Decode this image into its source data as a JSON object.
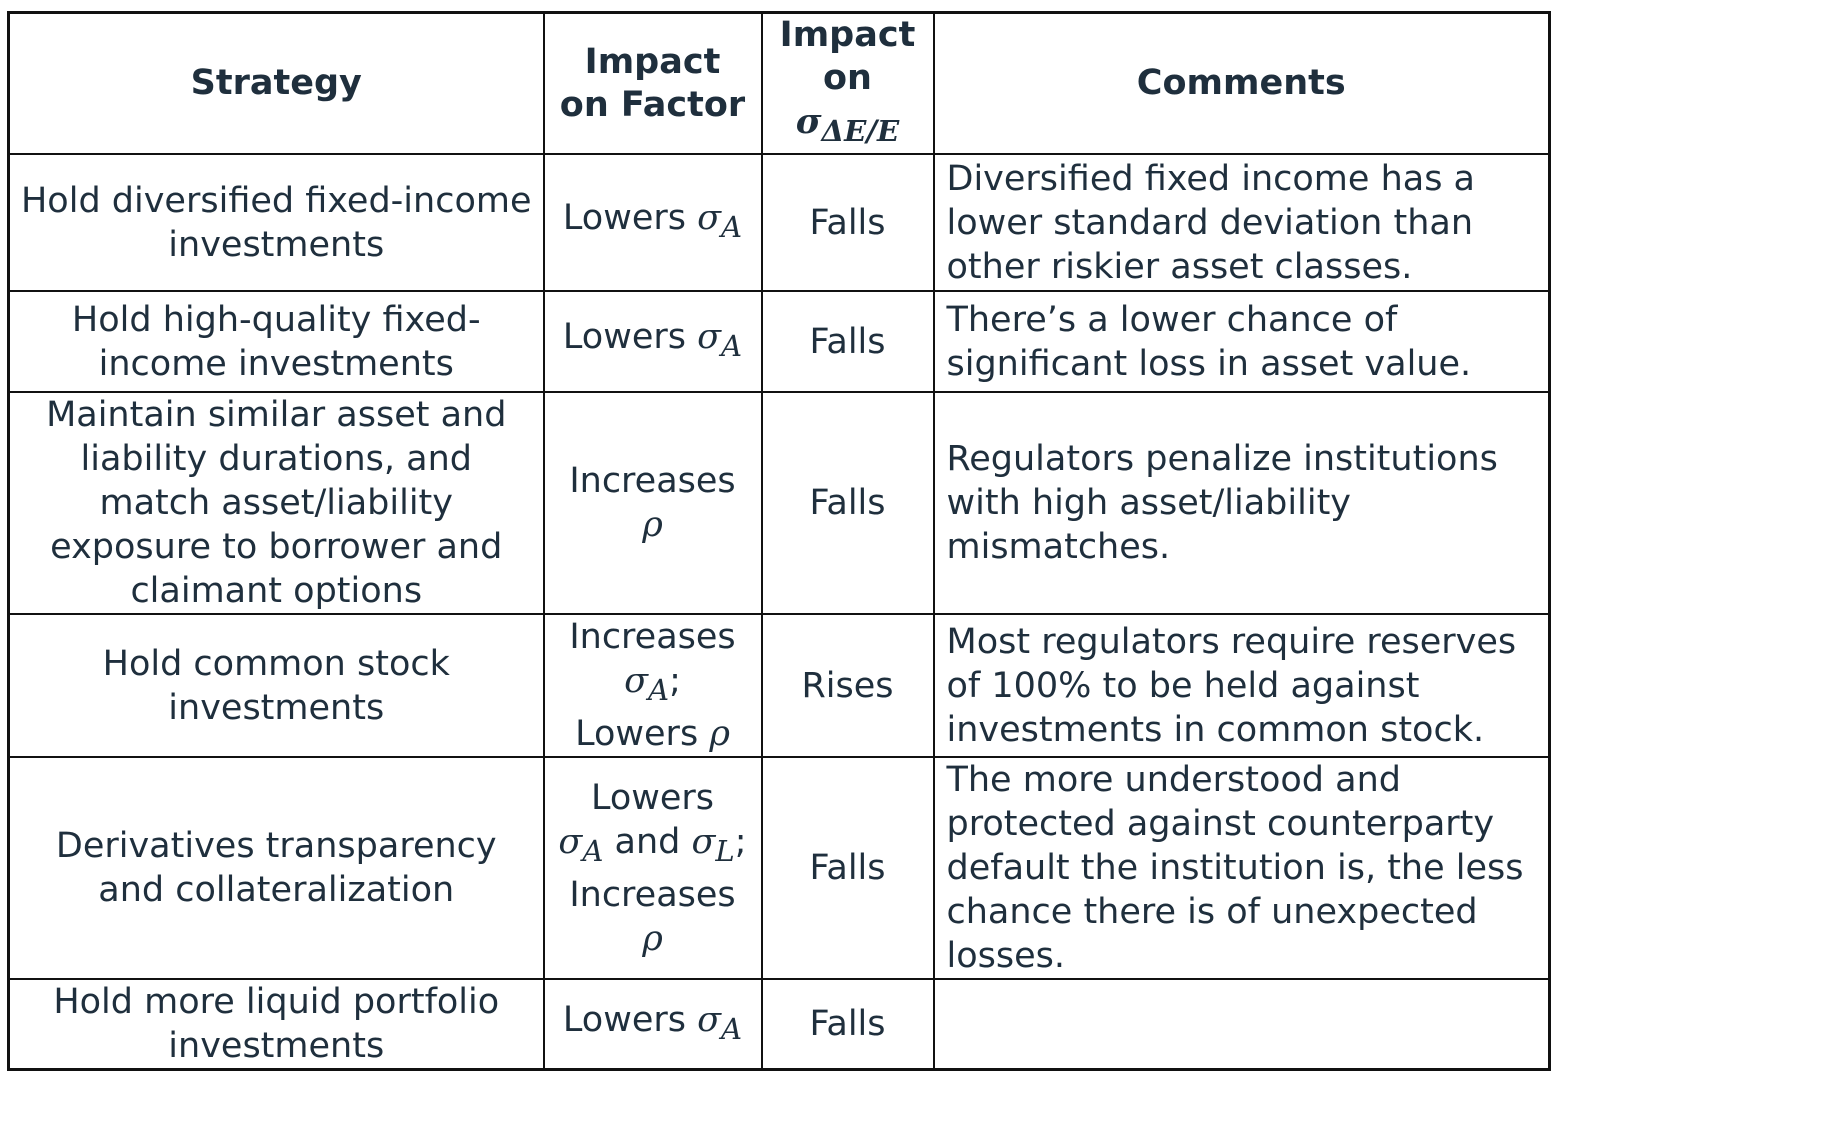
{
  "table": {
    "headers": {
      "strategy": "Strategy",
      "impact_factor": "Impact on Factor",
      "impact_sigma_prefix": "Impact on",
      "impact_sigma_symbol": "σ",
      "impact_sigma_sub": "ΔE/E",
      "comments": "Comments"
    },
    "rows": [
      {
        "strategy": "Hold diversified fixed-income investments",
        "impact_factor": {
          "lead": "Lowers",
          "symbol": "σ",
          "sub": "A"
        },
        "impact_sigma": "Falls",
        "comments": "Diversified fixed income has a lower standard deviation than other riskier asset classes."
      },
      {
        "strategy": "Hold high-quality fixed-income investments",
        "impact_factor": {
          "lead": "Lowers",
          "symbol": "σ",
          "sub": "A"
        },
        "impact_sigma": "Falls",
        "comments": "There’s a lower chance of significant loss in asset value."
      },
      {
        "strategy": "Maintain similar asset and liability durations, and match asset/liability exposure to borrower and claimant options",
        "impact_factor": {
          "lead": "Increases",
          "symbol": "ρ"
        },
        "impact_sigma": "Falls",
        "comments": "Regulators penalize institutions with high asset/liability mismatches."
      },
      {
        "strategy": "Hold common stock investments",
        "impact_factor": {
          "lead": "Increases",
          "symbol": "σ",
          "sub": "A",
          "punct": ";",
          "lead2": "Lowers",
          "symbol2": "ρ"
        },
        "impact_sigma": "Rises",
        "comments": "Most regulators require reserves of 100% to be held against investments in common stock."
      },
      {
        "strategy": "Derivatives transparency and collateralization",
        "impact_factor": {
          "lead": "Lowers",
          "symbol": "σ",
          "sub": "A",
          "and": "and",
          "symbol_b": "σ",
          "sub_b": "L",
          "punct": ";",
          "lead2": "Increases",
          "symbol2": "ρ"
        },
        "impact_sigma": "Falls",
        "comments": "The more understood and protected against counterparty default the institution is, the less chance there is of unexpected losses."
      },
      {
        "strategy": "Hold more liquid portfolio investments",
        "impact_factor": {
          "lead": "Lowers",
          "symbol": "σ",
          "sub": "A"
        },
        "impact_sigma": "Falls",
        "comments": ""
      }
    ]
  }
}
